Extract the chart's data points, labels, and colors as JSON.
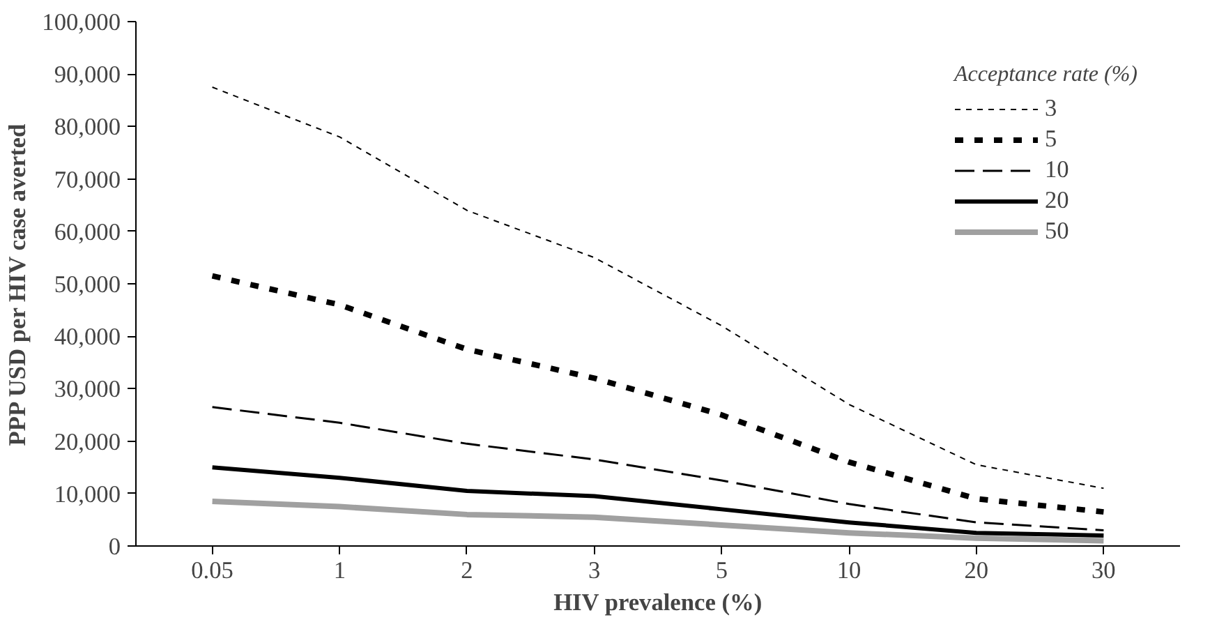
{
  "chart_data": {
    "type": "line",
    "xlabel": "HIV prevalence (%)",
    "ylabel": "PPP USD per HIV case averted",
    "legend_title": "Acceptance rate (%)",
    "categories": [
      "0.05",
      "1",
      "2",
      "3",
      "5",
      "10",
      "20",
      "30"
    ],
    "ylim": [
      0,
      100000
    ],
    "yticks": [
      {
        "value": 0,
        "label": "0"
      },
      {
        "value": 10000,
        "label": "10,000"
      },
      {
        "value": 20000,
        "label": "20,000"
      },
      {
        "value": 30000,
        "label": "30,000"
      },
      {
        "value": 40000,
        "label": "40,000"
      },
      {
        "value": 50000,
        "label": "50,000"
      },
      {
        "value": 60000,
        "label": "60,000"
      },
      {
        "value": 70000,
        "label": "70,000"
      },
      {
        "value": 80000,
        "label": "80,000"
      },
      {
        "value": 90000,
        "label": "90,000"
      },
      {
        "value": 100000,
        "label": "100,000"
      }
    ],
    "grid": false,
    "legend": "top right",
    "series": [
      {
        "name": "3",
        "color": "#000000",
        "line_style": "dashed",
        "values": [
          87500,
          78000,
          64000,
          55000,
          42000,
          27000,
          15500,
          11000
        ]
      },
      {
        "name": "5",
        "color": "#000000",
        "line_style": "dashed",
        "values": [
          51500,
          46000,
          37500,
          32000,
          25000,
          16000,
          9000,
          6500
        ]
      },
      {
        "name": "10",
        "color": "#000000",
        "line_style": "dashed",
        "values": [
          26500,
          23500,
          19500,
          16500,
          12500,
          8000,
          4500,
          3000
        ]
      },
      {
        "name": "20",
        "color": "#000000",
        "line_style": "solid",
        "values": [
          15000,
          13000,
          10500,
          9500,
          7000,
          4500,
          2500,
          2000
        ]
      },
      {
        "name": "50",
        "color": "#a0a0a0",
        "line_style": "solid",
        "values": [
          8500,
          7500,
          6000,
          5500,
          4000,
          2500,
          1500,
          1000
        ]
      }
    ]
  }
}
